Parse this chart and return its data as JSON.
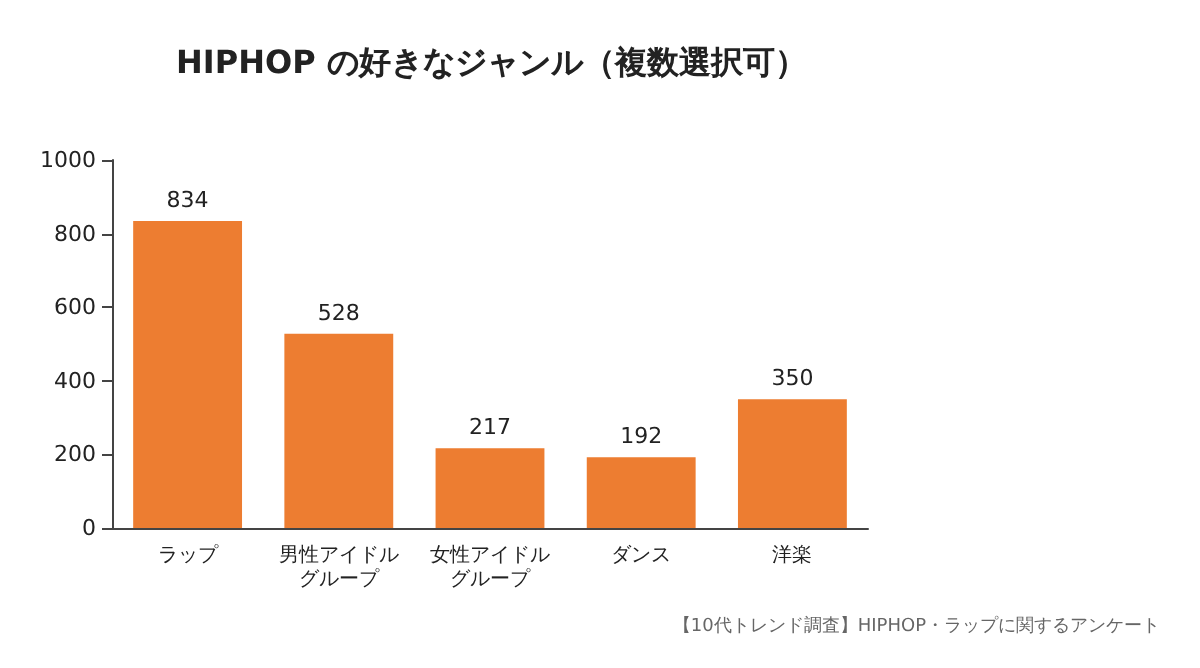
{
  "chart_data": {
    "type": "bar",
    "title": "HIPHOP の好きなジャンル（複数選択可）",
    "categories": [
      "ラップ",
      "男性アイドルグループ",
      "女性アイドルグループ",
      "ダンス",
      "洋楽"
    ],
    "values": [
      834,
      528,
      217,
      192,
      350
    ],
    "color": "#ed7d31",
    "ylim": [
      0,
      1000
    ],
    "yticks": [
      0,
      200,
      400,
      600,
      800,
      1000
    ],
    "grid": false,
    "data_labels": true,
    "annotations": [
      "【10代トレンド調査】HIPHOP・ラップに関するアンケート"
    ]
  }
}
